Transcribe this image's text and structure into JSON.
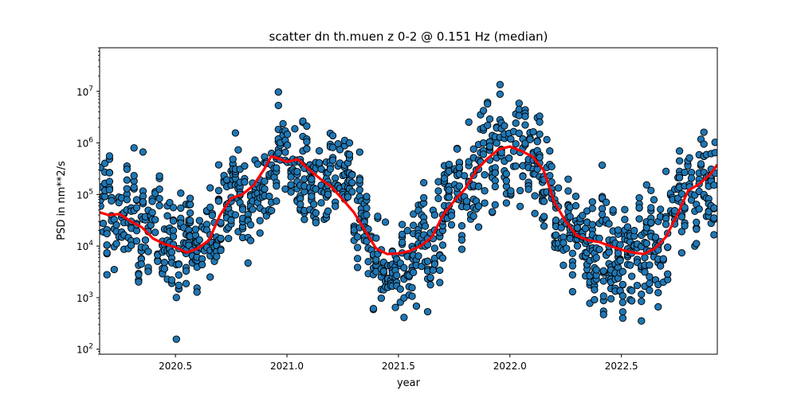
{
  "chart_data": {
    "type": "scatter",
    "title": "scatter dn th.muen z 0-2 @ 0.151 Hz (median)",
    "xlabel": "year",
    "ylabel": "PSD in nm**2/s",
    "x_range": [
      2020.16,
      2022.93
    ],
    "y_range": [
      80,
      70000000
    ],
    "y_scale": "log",
    "grid": false,
    "x_ticks": [
      {
        "value": 2020.5,
        "label": "2020.5"
      },
      {
        "value": 2021.0,
        "label": "2021.0"
      },
      {
        "value": 2021.5,
        "label": "2021.5"
      },
      {
        "value": 2022.0,
        "label": "2022.0"
      },
      {
        "value": 2022.5,
        "label": "2022.5"
      }
    ],
    "y_ticks": [
      {
        "value": 100,
        "base": "10",
        "exp": "2"
      },
      {
        "value": 1000,
        "base": "10",
        "exp": "3"
      },
      {
        "value": 10000,
        "base": "10",
        "exp": "4"
      },
      {
        "value": 100000,
        "base": "10",
        "exp": "5"
      },
      {
        "value": 1000000,
        "base": "10",
        "exp": "6"
      },
      {
        "value": 10000000,
        "base": "10",
        "exp": "7"
      }
    ],
    "scatter_color": "#1f77b4",
    "median_color": "#ff0000",
    "median_line": {
      "x": [
        2020.16,
        2020.2,
        2020.25,
        2020.3,
        2020.35,
        2020.4,
        2020.45,
        2020.5,
        2020.55,
        2020.6,
        2020.65,
        2020.7,
        2020.75,
        2020.8,
        2020.85,
        2020.9,
        2020.93,
        2020.95,
        2021.0,
        2021.05,
        2021.1,
        2021.15,
        2021.2,
        2021.25,
        2021.3,
        2021.35,
        2021.4,
        2021.45,
        2021.5,
        2021.55,
        2021.6,
        2021.65,
        2021.7,
        2021.75,
        2021.8,
        2021.85,
        2021.9,
        2021.95,
        2022.0,
        2022.05,
        2022.1,
        2022.15,
        2022.2,
        2022.25,
        2022.3,
        2022.35,
        2022.4,
        2022.45,
        2022.5,
        2022.55,
        2022.6,
        2022.65,
        2022.7,
        2022.75,
        2022.8,
        2022.85,
        2022.9,
        2022.93
      ],
      "y": [
        45000,
        40000,
        42000,
        30000,
        23000,
        14000,
        11000,
        9500,
        7500,
        9000,
        13000,
        40000,
        85000,
        100000,
        150000,
        320000,
        550000,
        520000,
        430000,
        480000,
        300000,
        200000,
        140000,
        80000,
        45000,
        20000,
        9000,
        7000,
        7200,
        8000,
        10000,
        15000,
        40000,
        75000,
        130000,
        300000,
        500000,
        750000,
        850000,
        700000,
        550000,
        300000,
        70000,
        30000,
        16000,
        13000,
        12000,
        10000,
        8500,
        7500,
        7000,
        9000,
        15000,
        40000,
        120000,
        160000,
        250000,
        380000
      ]
    }
  }
}
